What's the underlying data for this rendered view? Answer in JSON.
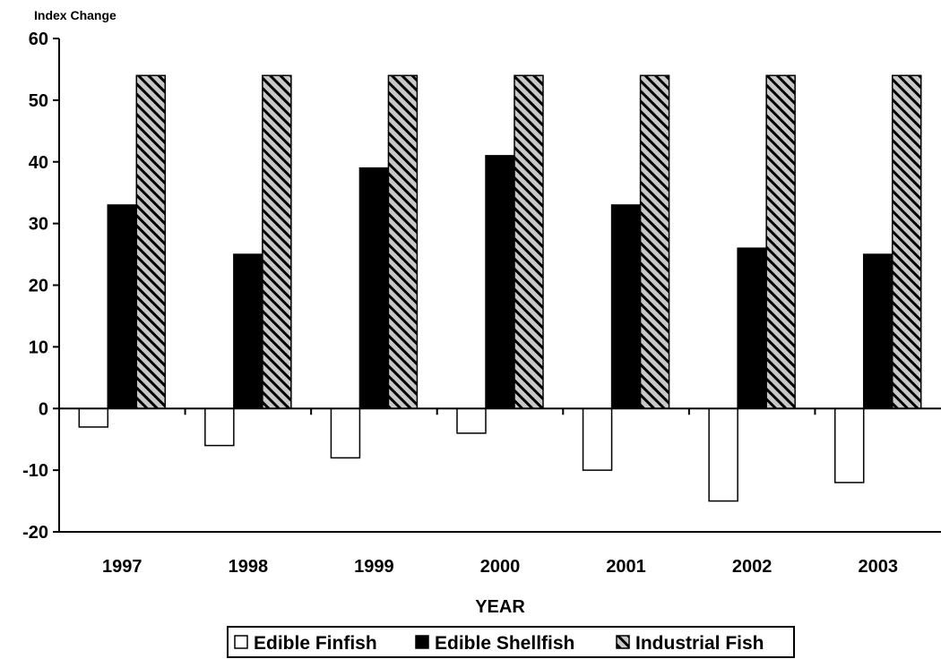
{
  "chart_data": {
    "type": "bar",
    "ylabel": "Index Change",
    "xlabel": "YEAR",
    "categories": [
      "1997",
      "1998",
      "1999",
      "2000",
      "2001",
      "2002",
      "2003"
    ],
    "ylim": [
      -20,
      60
    ],
    "yticks": [
      -20,
      -10,
      0,
      10,
      20,
      30,
      40,
      50,
      60
    ],
    "grid": false,
    "legend_position": "bottom",
    "series": [
      {
        "name": "Edible Finfish",
        "values": [
          -3,
          -6,
          -8,
          -4,
          -10,
          -15,
          -12
        ],
        "fill": "#ffffff"
      },
      {
        "name": "Edible Shellfish",
        "values": [
          33,
          25,
          39,
          41,
          33,
          26,
          25
        ],
        "fill": "#000000"
      },
      {
        "name": "Industrial Fish",
        "values": [
          54,
          54,
          54,
          54,
          54,
          54,
          54
        ],
        "fill": "hatch"
      }
    ],
    "colors": {
      "stroke": "#000000",
      "hatch_background": "#c8c8c8",
      "hatch_line": "#000000"
    }
  }
}
